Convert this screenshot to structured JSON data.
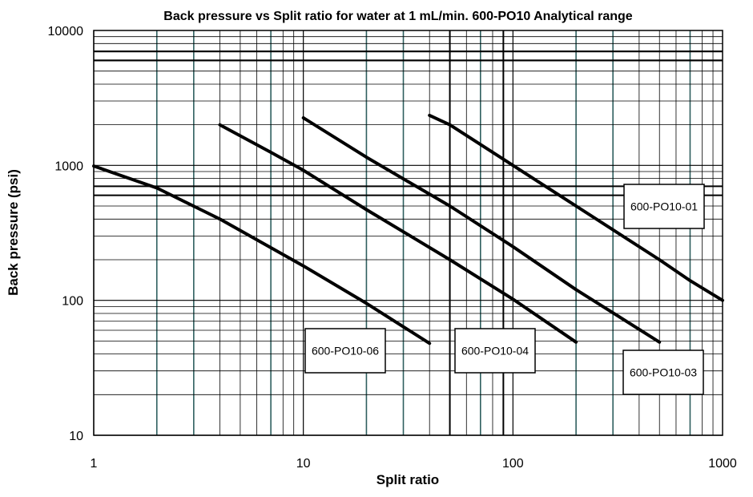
{
  "chart_data": {
    "type": "line",
    "title": "Back pressure vs Split ratio for water at 1 mL/min. 600-PO10 Analytical range",
    "xlabel": "Split ratio",
    "ylabel": "Back pressure (psi)",
    "xscale": "log",
    "yscale": "log",
    "xlim": [
      1,
      1000
    ],
    "ylim": [
      10,
      10000
    ],
    "xticks": [
      "1",
      "10",
      "100",
      "1000"
    ],
    "yticks": [
      "10",
      "100",
      "1000",
      "10000"
    ],
    "grid": true,
    "legend": "inline labels",
    "series": [
      {
        "name": "600-PO10-06",
        "points": [
          [
            1,
            990
          ],
          [
            2,
            680
          ],
          [
            4,
            400
          ],
          [
            10,
            180
          ],
          [
            20,
            95
          ],
          [
            40,
            48
          ]
        ]
      },
      {
        "name": "600-PO10-04",
        "points": [
          [
            4,
            2000
          ],
          [
            7,
            1250
          ],
          [
            10,
            920
          ],
          [
            20,
            470
          ],
          [
            50,
            200
          ],
          [
            100,
            102
          ],
          [
            200,
            49
          ]
        ]
      },
      {
        "name": "600-PO10-03",
        "points": [
          [
            10,
            2250
          ],
          [
            20,
            1150
          ],
          [
            50,
            500
          ],
          [
            100,
            250
          ],
          [
            200,
            120
          ],
          [
            500,
            49
          ]
        ]
      },
      {
        "name": "600-PO10-01",
        "points": [
          [
            40,
            2350
          ],
          [
            50,
            2000
          ],
          [
            100,
            1000
          ],
          [
            200,
            500
          ],
          [
            500,
            200
          ],
          [
            700,
            140
          ],
          [
            1000,
            100
          ]
        ]
      }
    ]
  }
}
